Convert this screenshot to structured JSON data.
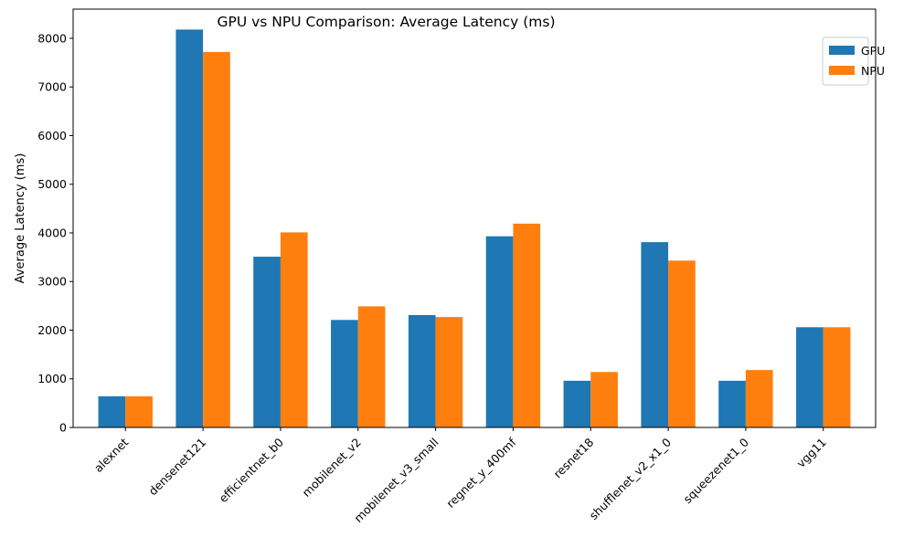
{
  "chart_data": {
    "type": "bar",
    "title": "GPU vs NPU Comparison: Average Latency (ms)",
    "xlabel": "",
    "ylabel": "Average Latency (ms)",
    "ylim": [
      0,
      8600
    ],
    "yticks": [
      0,
      1000,
      2000,
      3000,
      4000,
      5000,
      6000,
      7000,
      8000
    ],
    "grid": false,
    "legend_position": "top-right",
    "categories": [
      "alexnet",
      "densenet121",
      "efficientnet_b0",
      "mobilenet_v2",
      "mobilenet_v3_small",
      "regnet_y_400mf",
      "resnet18",
      "shufflenet_v2_x1_0",
      "squeezenet1_0",
      "vgg11"
    ],
    "series": [
      {
        "name": "GPU",
        "color": "#1f77b4",
        "values": [
          640,
          8180,
          3510,
          2210,
          2310,
          3930,
          960,
          3810,
          960,
          2060
        ]
      },
      {
        "name": "NPU",
        "color": "#ff7f0e",
        "values": [
          640,
          7720,
          4010,
          2490,
          2270,
          4190,
          1140,
          3430,
          1180,
          2060
        ]
      }
    ]
  }
}
